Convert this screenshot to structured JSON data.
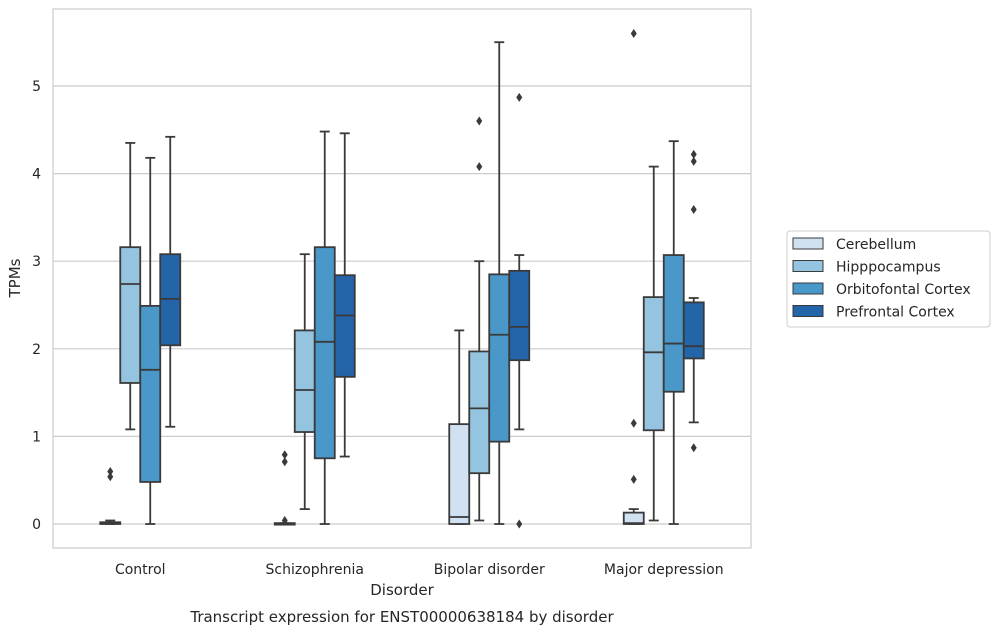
{
  "chart_data": {
    "type": "box",
    "title": "",
    "caption": "Transcript expression for ENST00000638184 by disorder",
    "xlabel": "Disorder",
    "ylabel": "TPMs",
    "ylim": [
      -0.27,
      5.9
    ],
    "yticks": [
      0,
      1,
      2,
      3,
      4,
      5
    ],
    "grid": "horizontal",
    "legend_position": "right",
    "categories": [
      "Control",
      "Schizophrenia",
      "Bipolar disorder",
      "Major depression"
    ],
    "series": [
      {
        "name": "Cerebellum",
        "color": "#d0e1f2",
        "boxes": [
          {
            "q1": 0.0,
            "median": 0.01,
            "q3": 0.02,
            "whislo": 0.0,
            "whishi": 0.04,
            "fliers": [
              0.54,
              0.6
            ]
          },
          {
            "q1": 0.0,
            "median": 0.0,
            "q3": 0.01,
            "whislo": 0.0,
            "whishi": 0.01,
            "fliers": [
              0.04,
              0.71,
              0.79
            ]
          },
          {
            "q1": 0.0,
            "median": 0.08,
            "q3": 1.14,
            "whislo": 0.0,
            "whishi": 2.21,
            "fliers": []
          },
          {
            "q1": 0.0,
            "median": 0.01,
            "q3": 0.13,
            "whislo": 0.0,
            "whishi": 0.17,
            "fliers": [
              0.51,
              1.15,
              5.6
            ]
          }
        ]
      },
      {
        "name": "Hipppocampus",
        "color": "#94c4df",
        "boxes": [
          {
            "q1": 1.61,
            "median": 2.74,
            "q3": 3.16,
            "whislo": 1.08,
            "whishi": 4.35,
            "fliers": []
          },
          {
            "q1": 1.05,
            "median": 1.53,
            "q3": 2.21,
            "whislo": 0.17,
            "whishi": 3.08,
            "fliers": []
          },
          {
            "q1": 0.58,
            "median": 1.32,
            "q3": 1.97,
            "whislo": 0.04,
            "whishi": 3.0,
            "fliers": [
              4.08,
              4.6
            ]
          },
          {
            "q1": 1.07,
            "median": 1.96,
            "q3": 2.59,
            "whislo": 0.04,
            "whishi": 4.08,
            "fliers": []
          }
        ]
      },
      {
        "name": "Orbitofontal Cortex",
        "color": "#4a98c9",
        "boxes": [
          {
            "q1": 0.48,
            "median": 1.76,
            "q3": 2.49,
            "whislo": 0.0,
            "whishi": 4.18,
            "fliers": []
          },
          {
            "q1": 0.75,
            "median": 2.08,
            "q3": 3.16,
            "whislo": 0.0,
            "whishi": 4.48,
            "fliers": []
          },
          {
            "q1": 0.94,
            "median": 2.16,
            "q3": 2.85,
            "whislo": 0.0,
            "whishi": 5.5,
            "fliers": []
          },
          {
            "q1": 1.51,
            "median": 2.06,
            "q3": 3.07,
            "whislo": 0.0,
            "whishi": 4.37,
            "fliers": []
          }
        ]
      },
      {
        "name": "Prefrontal Cortex",
        "color": "#2464a9",
        "boxes": [
          {
            "q1": 2.04,
            "median": 2.57,
            "q3": 3.08,
            "whislo": 1.11,
            "whishi": 4.42,
            "fliers": []
          },
          {
            "q1": 1.68,
            "median": 2.38,
            "q3": 2.84,
            "whislo": 0.77,
            "whishi": 4.46,
            "fliers": []
          },
          {
            "q1": 1.87,
            "median": 2.25,
            "q3": 2.89,
            "whislo": 1.08,
            "whishi": 3.07,
            "fliers": [
              0.0,
              4.87
            ]
          },
          {
            "q1": 1.89,
            "median": 2.03,
            "q3": 2.53,
            "whislo": 1.16,
            "whishi": 2.58,
            "fliers": [
              0.87,
              3.59,
              4.14,
              4.22
            ]
          }
        ]
      }
    ]
  }
}
